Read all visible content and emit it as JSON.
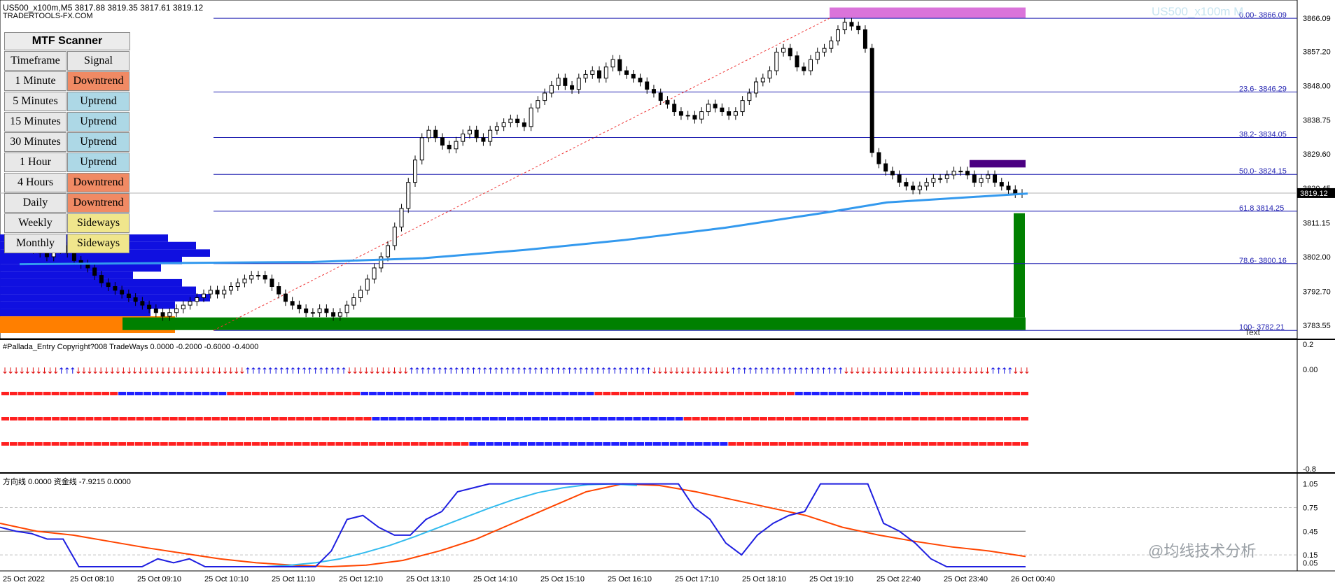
{
  "header": {
    "symbol_line": "US500_x100m,M5  3817.88 3819.35 3817.61 3819.12",
    "broker": "TRADERTOOLS-FX.COM",
    "watermark": "US500_x100m M",
    "panel2_title": "#Pallada_Entry Copyright?008 TradeWays 0.0000 -0.2000 -0.6000 -0.4000",
    "panel3_title": "方向线 0.0000  资金线 -7.9215 0.0000",
    "source_watermark": "@均线技术分析",
    "text_label": "Text"
  },
  "scanner": {
    "title": "MTF Scanner",
    "header": [
      "Timeframe",
      "Signal"
    ],
    "rows": [
      {
        "tf": "1 Minute",
        "signal": "Downtrend",
        "color": "#f08a64"
      },
      {
        "tf": "5 Minutes",
        "signal": "Uptrend",
        "color": "#add8e6"
      },
      {
        "tf": "15 Minutes",
        "signal": "Uptrend",
        "color": "#add8e6"
      },
      {
        "tf": "30 Minutes",
        "signal": "Uptrend",
        "color": "#add8e6"
      },
      {
        "tf": "1 Hour",
        "signal": "Uptrend",
        "color": "#add8e6"
      },
      {
        "tf": "4 Hours",
        "signal": "Downtrend",
        "color": "#f08a64"
      },
      {
        "tf": "Daily",
        "signal": "Downtrend",
        "color": "#f08a64"
      },
      {
        "tf": "Weekly",
        "signal": "Sideways",
        "color": "#f0e68c"
      },
      {
        "tf": "Monthly",
        "signal": "Sideways",
        "color": "#f0e68c"
      }
    ]
  },
  "chart_data": {
    "type": "candlestick",
    "symbol": "US500_x100m",
    "timeframe": "M5",
    "ohlc_header": {
      "open": 3817.88,
      "high": 3819.35,
      "low": 3817.61,
      "close": 3819.12
    },
    "current_price": "3819.12",
    "price_axis_labels": [
      "3866.09",
      "3857.20",
      "3848.00",
      "3838.75",
      "3829.60",
      "3820.45",
      "3811.15",
      "3802.00",
      "3792.70",
      "3783.55"
    ],
    "ylim": [
      3780.0,
      3869.5
    ],
    "fib_levels": [
      {
        "label": "0.00- 3866.09",
        "value": 3866.09
      },
      {
        "label": "23.6- 3846.29",
        "value": 3846.29
      },
      {
        "label": "38.2- 3834.05",
        "value": 3834.05
      },
      {
        "label": "50.0- 3824.15",
        "value": 3824.15
      },
      {
        "label": "61.8 3814.25",
        "value": 3814.25
      },
      {
        "label": "78.6- 3800.16",
        "value": 3800.16
      },
      {
        "label": "100- 3782.21",
        "value": 3782.21
      }
    ],
    "time_labels": [
      "25 Oct 2022",
      "25 Oct 08:10",
      "25 Oct 09:10",
      "25 Oct 10:10",
      "25 Oct 11:10",
      "25 Oct 12:10",
      "25 Oct 13:10",
      "25 Oct 14:10",
      "25 Oct 15:10",
      "25 Oct 16:10",
      "25 Oct 17:10",
      "25 Oct 18:10",
      "25 Oct 19:10",
      "25 Oct 22:40",
      "25 Oct 23:40",
      "26 Oct 00:40"
    ],
    "close_series": [
      3806,
      3805,
      3804,
      3803,
      3802,
      3804,
      3805,
      3803,
      3801,
      3800,
      3799,
      3797,
      3795,
      3794,
      3793,
      3792,
      3791,
      3790,
      3789,
      3788,
      3787,
      3786,
      3787,
      3788,
      3789,
      3790,
      3791,
      3792,
      3793,
      3792,
      3793,
      3794,
      3795,
      3796,
      3797,
      3797,
      3796,
      3794,
      3792,
      3790,
      3789,
      3788,
      3787,
      3787,
      3788,
      3787,
      3786,
      3787,
      3789,
      3791,
      3793,
      3796,
      3799,
      3802,
      3805,
      3810,
      3815,
      3822,
      3828,
      3834,
      3836,
      3834,
      3832,
      3831,
      3833,
      3835,
      3836,
      3834,
      3833,
      3836,
      3837,
      3838,
      3839,
      3838,
      3837,
      3842,
      3844,
      3846,
      3848,
      3850,
      3848,
      3847,
      3850,
      3851,
      3852,
      3850,
      3853,
      3855,
      3852,
      3851,
      3850,
      3849,
      3847,
      3846,
      3844,
      3843,
      3841,
      3840,
      3840,
      3839,
      3841,
      3843,
      3842,
      3841,
      3840,
      3841,
      3844,
      3846,
      3849,
      3850,
      3852,
      3857,
      3858,
      3856,
      3853,
      3852,
      3855,
      3857,
      3858,
      3860,
      3863,
      3865,
      3864,
      3863,
      3858,
      3830,
      3827,
      3825,
      3824,
      3822,
      3821,
      3820,
      3821,
      3822,
      3823,
      3823,
      3824,
      3825,
      3825,
      3824,
      3822,
      3823,
      3824,
      3822,
      3821,
      3820,
      3819,
      3819
    ],
    "moving_average": [
      {
        "x": 0.0,
        "y": 3800.0
      },
      {
        "x": 0.29,
        "y": 3800.6
      },
      {
        "x": 0.4,
        "y": 3801.6
      },
      {
        "x": 0.5,
        "y": 3803.8
      },
      {
        "x": 0.6,
        "y": 3806.5
      },
      {
        "x": 0.7,
        "y": 3809.8
      },
      {
        "x": 0.8,
        "y": 3813.9
      },
      {
        "x": 0.86,
        "y": 3816.6
      },
      {
        "x": 1.0,
        "y": 3819.0
      }
    ],
    "oscillator_panel2": {
      "ticks": [
        "0.2",
        "0.00",
        "-0.8"
      ],
      "arrow_pattern": "DDDDDDDDDDUUUDDDDDDDDDDDDDDDDDDDDDDDDDDDDDDUUUUUUUUUUUUUUUUUUDDDDDDDDDDDUUUUUUUUUUUUUUUUUUUUUUUUUUUUUUUUUUUUUUUUUUUDDDDDDDDDDDDDDUUUUUUUUUUUUUUUUUUUUDDDDDDDDDDDDDDDDDDDDDDDDDDUUUUDDD",
      "dots_row1": "RRRRRRRRRRRRRRBBBBBBBBBBBBBRRRRRRRRRRRRRRRRBBBBBBBBBBBBBBBBBBBBBBBBBBBBRRRRRRRRRRRRRRRRRRRRRRRRBBBBBBBBBBBBBBBRRRRRRRRRRRRR",
      "dots_row2": "RRRRRRRRRRRRRRRRRRRRRRRRRRRRRRRRRRRRRRRRRRRRBBBBBBBBBBBBBBBBBBBBBBBBBBBBBBBBBBBBBRRRRRRRRRRRRRRRRRRRRRRRRRRRRRRRRRRRRRRRRR",
      "dots_row3": "RRRRRRRRRRRRRRRRRRRRRRRRRRRRRRRRRRRRRRRRRRRRRRRRRRRRRRRRBBBBBBBBBBBBBBBBBBBBBBBBBBBBBBBRRRRRRRRRRRRRRRRRRRRRRRRRRRRRRRRRRRR"
    },
    "oscillator_panel3": {
      "ticks": [
        "1.05",
        "0.75",
        "0.45",
        "0.15",
        "0.05"
      ],
      "ylim": [
        0.0,
        1.1
      ],
      "blue_line": [
        0.5,
        0.45,
        0.42,
        0.35,
        0.35,
        0.0,
        0.0,
        0.0,
        0.0,
        0.0,
        0.1,
        0.05,
        0.1,
        0.0,
        0.0,
        0.0,
        0.0,
        0.0,
        0.0,
        0.0,
        0.0,
        0.2,
        0.6,
        0.65,
        0.5,
        0.4,
        0.4,
        0.6,
        0.7,
        0.95,
        1.0,
        1.05,
        1.05,
        1.05,
        1.05,
        1.05,
        1.05,
        1.05,
        1.05,
        1.05,
        1.05,
        1.05,
        1.05,
        1.05,
        0.75,
        0.6,
        0.3,
        0.15,
        0.4,
        0.55,
        0.65,
        0.7,
        1.05,
        1.05,
        1.05,
        1.05,
        0.55,
        0.45,
        0.3,
        0.1,
        0.0,
        0.0,
        0.0,
        0.0,
        0.0,
        0.0
      ],
      "cyan_line": [
        0.0,
        0.02,
        0.05,
        0.1,
        0.18,
        0.27,
        0.38,
        0.5,
        0.62,
        0.74,
        0.85,
        0.94,
        1.0,
        1.04,
        1.05,
        1.03
      ],
      "orange_line": [
        0.55,
        0.45,
        0.4,
        0.32,
        0.24,
        0.17,
        0.1,
        0.05,
        0.02,
        0.0,
        0.02,
        0.08,
        0.2,
        0.35,
        0.55,
        0.75,
        0.95,
        1.05,
        1.03,
        0.95,
        0.85,
        0.75,
        0.65,
        0.5,
        0.4,
        0.32,
        0.25,
        0.2,
        0.13
      ],
      "hline": 0.45
    }
  }
}
